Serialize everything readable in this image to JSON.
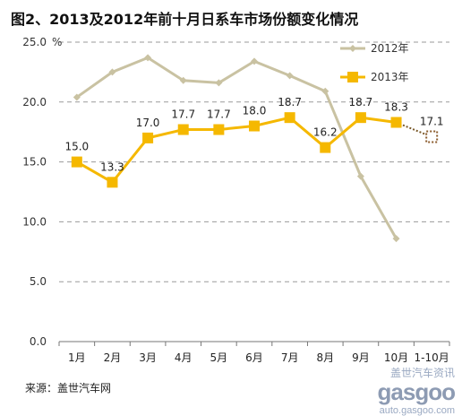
{
  "title": "图2、2013及2012年前十月日系车市场份额变化情况",
  "source": "来源：盖世汽车网",
  "watermark": {
    "line1": "盖世汽车资讯",
    "line2": "gasgoo",
    "line3": "auto.gasgoo.com"
  },
  "chart_data": {
    "type": "line",
    "categories": [
      "1月",
      "2月",
      "3月",
      "4月",
      "5月",
      "6月",
      "7月",
      "8月",
      "9月",
      "10月",
      "1-10月"
    ],
    "y_unit": "%",
    "ylim": [
      0,
      25
    ],
    "yticks": [
      0,
      5,
      10,
      15,
      20,
      25
    ],
    "ytick_labels": [
      "0.0",
      "5.0",
      "10.0",
      "15.0",
      "20.0",
      "25.0"
    ],
    "grid": true,
    "legend_position": "top-right",
    "series": [
      {
        "name": "2012年",
        "color": "#c9c2a2",
        "values": [
          20.4,
          22.5,
          23.7,
          21.8,
          21.6,
          23.4,
          22.2,
          20.9,
          13.8,
          8.6,
          null
        ],
        "labels": null
      },
      {
        "name": "2013年",
        "color": "#f5b800",
        "values": [
          15.0,
          13.3,
          17.0,
          17.7,
          17.7,
          18.0,
          18.7,
          16.2,
          18.7,
          18.3,
          17.1
        ],
        "labels": [
          "15.0",
          "13.3",
          "17.0",
          "17.7",
          "17.7",
          "18.0",
          "18.7",
          "16.2",
          "18.7",
          "18.3",
          "17.1"
        ],
        "dotted_last": true
      }
    ]
  }
}
